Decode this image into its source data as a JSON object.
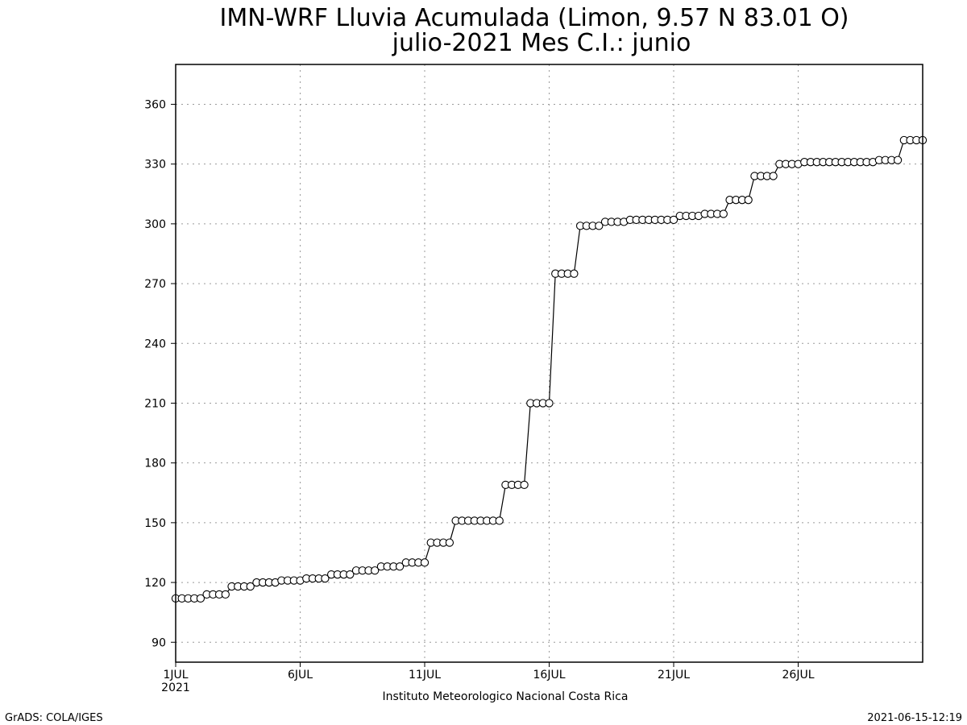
{
  "chart_data": {
    "type": "line",
    "title_line1": "IMN-WRF  Lluvia Acumulada (Limon, 9.57  N 83.01  O)",
    "title_line2": "julio-2021 Mes C.I.: junio",
    "xlabel": "Instituto Meteorologico Nacional Costa Rica",
    "ylabel": "",
    "xlim": [
      1,
      31
    ],
    "ylim": [
      80,
      380
    ],
    "y_ticks": [
      90,
      120,
      150,
      180,
      210,
      240,
      270,
      300,
      330,
      360
    ],
    "x_ticks": [
      {
        "day": 1,
        "label": "1JUL",
        "sublabel": "2021"
      },
      {
        "day": 6,
        "label": "6JUL",
        "sublabel": ""
      },
      {
        "day": 11,
        "label": "11JUL",
        "sublabel": ""
      },
      {
        "day": 16,
        "label": "16JUL",
        "sublabel": ""
      },
      {
        "day": 21,
        "label": "21JUL",
        "sublabel": ""
      },
      {
        "day": 26,
        "label": "26JUL",
        "sublabel": ""
      }
    ],
    "grid": true,
    "marker": "open-circle",
    "line_color": "#000000",
    "x": [
      1.0,
      1.25,
      1.5,
      1.75,
      2.0,
      2.25,
      2.5,
      2.75,
      3.0,
      3.25,
      3.5,
      3.75,
      4.0,
      4.25,
      4.5,
      4.75,
      5.0,
      5.25,
      5.5,
      5.75,
      6.0,
      6.25,
      6.5,
      6.75,
      7.0,
      7.25,
      7.5,
      7.75,
      8.0,
      8.25,
      8.5,
      8.75,
      9.0,
      9.25,
      9.5,
      9.75,
      10.0,
      10.25,
      10.5,
      10.75,
      11.0,
      11.25,
      11.5,
      11.75,
      12.0,
      12.25,
      12.5,
      12.75,
      13.0,
      13.25,
      13.5,
      13.75,
      14.0,
      14.25,
      14.5,
      14.75,
      15.0,
      15.25,
      15.5,
      15.75,
      16.0,
      16.25,
      16.5,
      16.75,
      17.0,
      17.25,
      17.5,
      17.75,
      18.0,
      18.25,
      18.5,
      18.75,
      19.0,
      19.25,
      19.5,
      19.75,
      20.0,
      20.25,
      20.5,
      20.75,
      21.0,
      21.25,
      21.5,
      21.75,
      22.0,
      22.25,
      22.5,
      22.75,
      23.0,
      23.25,
      23.5,
      23.75,
      24.0,
      24.25,
      24.5,
      24.75,
      25.0,
      25.25,
      25.5,
      25.75,
      26.0,
      26.25,
      26.5,
      26.75,
      27.0,
      27.25,
      27.5,
      27.75,
      28.0,
      28.25,
      28.5,
      28.75,
      29.0,
      29.25,
      29.5,
      29.75,
      30.0,
      30.25,
      30.5,
      30.75,
      31.0
    ],
    "y": [
      112,
      112,
      112,
      112,
      112,
      114,
      114,
      114,
      114,
      118,
      118,
      118,
      118,
      120,
      120,
      120,
      120,
      121,
      121,
      121,
      121,
      122,
      122,
      122,
      122,
      124,
      124,
      124,
      124,
      126,
      126,
      126,
      126,
      128,
      128,
      128,
      128,
      130,
      130,
      130,
      130,
      140,
      140,
      140,
      140,
      151,
      151,
      151,
      151,
      151,
      151,
      151,
      151,
      169,
      169,
      169,
      169,
      210,
      210,
      210,
      210,
      275,
      275,
      275,
      275,
      299,
      299,
      299,
      299,
      301,
      301,
      301,
      301,
      302,
      302,
      302,
      302,
      302,
      302,
      302,
      302,
      304,
      304,
      304,
      304,
      305,
      305,
      305,
      305,
      312,
      312,
      312,
      312,
      324,
      324,
      324,
      324,
      330,
      330,
      330,
      330,
      331,
      331,
      331,
      331,
      331,
      331,
      331,
      331,
      331,
      331,
      331,
      331,
      332,
      332,
      332,
      332,
      342,
      342,
      342,
      342
    ]
  },
  "footer": {
    "left": "GrADS: COLA/IGES",
    "right": "2021-06-15-12:19"
  }
}
